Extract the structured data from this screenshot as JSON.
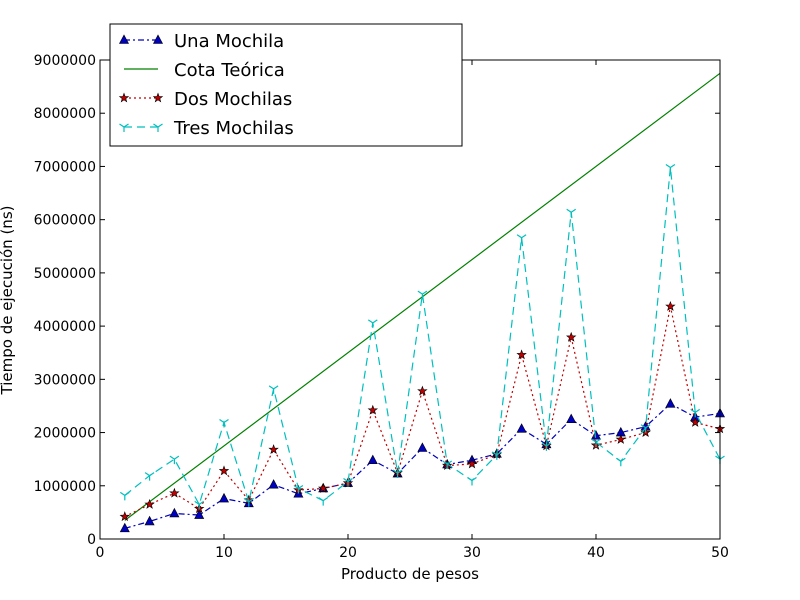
{
  "chart_data": {
    "type": "line",
    "xlabel": "Producto de pesos",
    "ylabel": "Tiempo de ejecución (ns)",
    "xlim": [
      0,
      50
    ],
    "ylim": [
      0,
      9000000
    ],
    "xticks": [
      0,
      10,
      20,
      30,
      40,
      50
    ],
    "yticks": [
      0,
      1000000,
      2000000,
      3000000,
      4000000,
      5000000,
      6000000,
      7000000,
      8000000,
      9000000
    ],
    "grid": false,
    "legend_position": "top-left",
    "x": [
      2,
      4,
      6,
      8,
      10,
      12,
      14,
      16,
      18,
      20,
      22,
      24,
      26,
      28,
      30,
      32,
      34,
      36,
      38,
      40,
      42,
      44,
      46,
      48,
      50
    ],
    "series": [
      {
        "name": "Una Mochila",
        "color": "#0000bf",
        "line_style": "dashdot",
        "marker": "triangle",
        "values": [
          200000,
          330000,
          480000,
          450000,
          760000,
          670000,
          1020000,
          850000,
          950000,
          1050000,
          1480000,
          1230000,
          1710000,
          1400000,
          1480000,
          1600000,
          2070000,
          1780000,
          2250000,
          1940000,
          2000000,
          2110000,
          2540000,
          2290000,
          2360000
        ]
      },
      {
        "name": "Cota Teórica",
        "color": "#008000",
        "line_style": "solid",
        "marker": "none",
        "x": [
          2,
          50
        ],
        "values": [
          350000,
          8750000
        ]
      },
      {
        "name": "Dos Mochilas",
        "color": "#bf0000",
        "line_style": "dotted",
        "marker": "star",
        "values": [
          420000,
          650000,
          860000,
          570000,
          1280000,
          730000,
          1680000,
          920000,
          950000,
          1050000,
          2420000,
          1240000,
          2780000,
          1380000,
          1410000,
          1590000,
          3460000,
          1750000,
          3790000,
          1760000,
          1870000,
          2000000,
          4370000,
          2190000,
          2070000
        ]
      },
      {
        "name": "Tres Mochilas",
        "color": "#00bfbf",
        "line_style": "dashed",
        "marker": "tri_down",
        "values": [
          820000,
          1190000,
          1500000,
          650000,
          2190000,
          700000,
          2820000,
          950000,
          720000,
          1080000,
          4060000,
          1240000,
          4600000,
          1410000,
          1100000,
          1580000,
          5660000,
          1750000,
          6140000,
          1820000,
          1460000,
          2090000,
          6980000,
          2380000,
          1500000
        ]
      }
    ]
  }
}
